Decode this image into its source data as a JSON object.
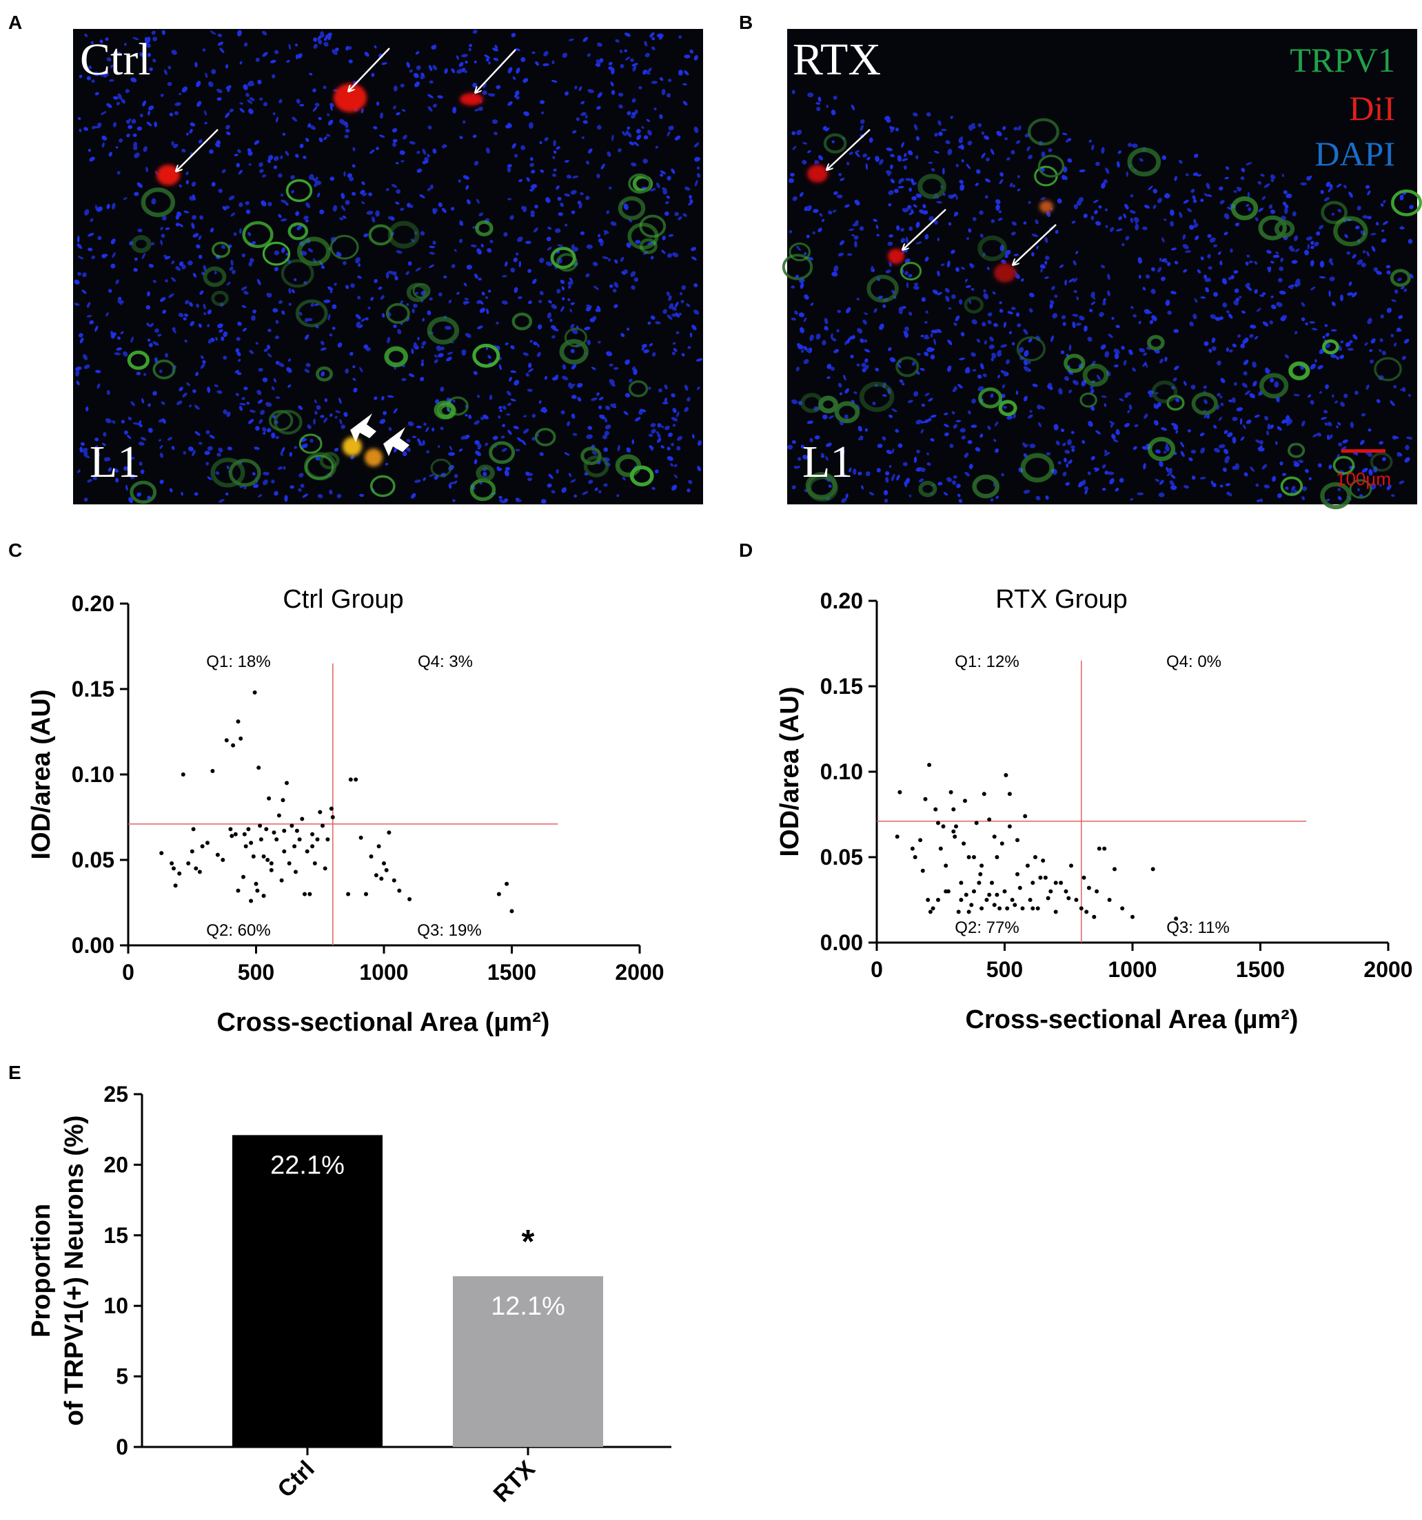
{
  "panels": {
    "A": {
      "letter": "A",
      "condition": "Ctrl",
      "level": "L1",
      "colors": {
        "background": "#05060c",
        "nuclei": "#1e30e6",
        "trpv1": "#3fa832",
        "dil": "#e0150f",
        "colocalized": "#e8b316",
        "arrow": "#ffffff"
      }
    },
    "B": {
      "letter": "B",
      "condition": "RTX",
      "level": "L1",
      "legend": [
        {
          "label": "TRPV1",
          "color": "#20a24a"
        },
        {
          "label": "DiI",
          "color": "#e0201a"
        },
        {
          "label": "DAPI",
          "color": "#1a6ec8"
        }
      ],
      "scalebar_label": "100µm",
      "scalebar_color": "#e01010"
    },
    "C": {
      "letter": "C"
    },
    "D": {
      "letter": "D"
    },
    "E": {
      "letter": "E"
    }
  },
  "chart_data": [
    {
      "panel": "C",
      "type": "scatter",
      "title": "Ctrl Group",
      "xlabel": "Cross-sectional Area (µm²)",
      "ylabel": "IOD/area (AU)",
      "xlim": [
        0,
        2000
      ],
      "ylim": [
        0,
        0.2
      ],
      "xticks": [
        "0",
        "500",
        "1000",
        "1500",
        "2000"
      ],
      "yticks": [
        "0.00",
        "0.05",
        "0.10",
        "0.15",
        "0.20"
      ],
      "threshold_x": 800,
      "threshold_y": 0.071,
      "threshold_color": "#e06060",
      "quadrants": {
        "Q1": "Q1: 18%",
        "Q2": "Q2: 60%",
        "Q3": "Q3: 19%",
        "Q4": "Q4: 3%"
      },
      "points": [
        [
          130,
          0.054
        ],
        [
          170,
          0.048
        ],
        [
          178,
          0.045
        ],
        [
          185,
          0.035
        ],
        [
          200,
          0.042
        ],
        [
          215,
          0.1
        ],
        [
          235,
          0.048
        ],
        [
          250,
          0.055
        ],
        [
          255,
          0.068
        ],
        [
          265,
          0.045
        ],
        [
          280,
          0.043
        ],
        [
          290,
          0.058
        ],
        [
          310,
          0.06
        ],
        [
          330,
          0.102
        ],
        [
          350,
          0.053
        ],
        [
          370,
          0.05
        ],
        [
          385,
          0.12
        ],
        [
          400,
          0.068
        ],
        [
          405,
          0.064
        ],
        [
          410,
          0.117
        ],
        [
          420,
          0.065
        ],
        [
          430,
          0.131
        ],
        [
          440,
          0.121
        ],
        [
          450,
          0.04
        ],
        [
          455,
          0.065
        ],
        [
          460,
          0.058
        ],
        [
          470,
          0.068
        ],
        [
          480,
          0.06
        ],
        [
          490,
          0.052
        ],
        [
          495,
          0.148
        ],
        [
          500,
          0.036
        ],
        [
          505,
          0.032
        ],
        [
          510,
          0.104
        ],
        [
          515,
          0.07
        ],
        [
          520,
          0.062
        ],
        [
          530,
          0.052
        ],
        [
          540,
          0.068
        ],
        [
          545,
          0.05
        ],
        [
          550,
          0.086
        ],
        [
          560,
          0.048
        ],
        [
          570,
          0.066
        ],
        [
          580,
          0.062
        ],
        [
          590,
          0.076
        ],
        [
          600,
          0.038
        ],
        [
          605,
          0.085
        ],
        [
          610,
          0.055
        ],
        [
          620,
          0.095
        ],
        [
          630,
          0.048
        ],
        [
          640,
          0.07
        ],
        [
          650,
          0.058
        ],
        [
          655,
          0.043
        ],
        [
          660,
          0.067
        ],
        [
          670,
          0.062
        ],
        [
          680,
          0.074
        ],
        [
          690,
          0.03
        ],
        [
          700,
          0.055
        ],
        [
          710,
          0.03
        ],
        [
          720,
          0.065
        ],
        [
          730,
          0.048
        ],
        [
          740,
          0.062
        ],
        [
          750,
          0.078
        ],
        [
          760,
          0.07
        ],
        [
          770,
          0.045
        ],
        [
          780,
          0.062
        ],
        [
          795,
          0.08
        ],
        [
          800,
          0.075
        ],
        [
          860,
          0.03
        ],
        [
          870,
          0.097
        ],
        [
          890,
          0.097
        ],
        [
          910,
          0.063
        ],
        [
          930,
          0.03
        ],
        [
          950,
          0.052
        ],
        [
          970,
          0.041
        ],
        [
          980,
          0.058
        ],
        [
          990,
          0.039
        ],
        [
          1000,
          0.048
        ],
        [
          1010,
          0.044
        ],
        [
          1020,
          0.066
        ],
        [
          1040,
          0.038
        ],
        [
          1060,
          0.032
        ],
        [
          1100,
          0.027
        ],
        [
          1450,
          0.03
        ],
        [
          1480,
          0.036
        ],
        [
          1500,
          0.02
        ],
        [
          560,
          0.044
        ],
        [
          610,
          0.067
        ],
        [
          720,
          0.058
        ],
        [
          530,
          0.029
        ],
        [
          480,
          0.026
        ],
        [
          430,
          0.032
        ]
      ]
    },
    {
      "panel": "D",
      "type": "scatter",
      "title": "RTX Group",
      "xlabel": "Cross-sectional Area (µm²)",
      "ylabel": "IOD/area (AU)",
      "xlim": [
        0,
        2000
      ],
      "ylim": [
        0,
        0.2
      ],
      "xticks": [
        "0",
        "500",
        "1000",
        "1500",
        "2000"
      ],
      "yticks": [
        "0.00",
        "0.05",
        "0.10",
        "0.15",
        "0.20"
      ],
      "threshold_x": 800,
      "threshold_y": 0.071,
      "threshold_color": "#e06060",
      "quadrants": {
        "Q1": "Q1: 12%",
        "Q2": "Q2: 77%",
        "Q3": "Q3: 11%",
        "Q4": "Q4: 0%"
      },
      "points": [
        [
          80,
          0.062
        ],
        [
          90,
          0.088
        ],
        [
          140,
          0.055
        ],
        [
          150,
          0.05
        ],
        [
          170,
          0.06
        ],
        [
          180,
          0.042
        ],
        [
          190,
          0.084
        ],
        [
          200,
          0.025
        ],
        [
          205,
          0.104
        ],
        [
          210,
          0.018
        ],
        [
          220,
          0.02
        ],
        [
          230,
          0.078
        ],
        [
          240,
          0.07
        ],
        [
          250,
          0.055
        ],
        [
          260,
          0.068
        ],
        [
          270,
          0.045
        ],
        [
          280,
          0.03
        ],
        [
          290,
          0.088
        ],
        [
          300,
          0.065
        ],
        [
          305,
          0.062
        ],
        [
          310,
          0.068
        ],
        [
          320,
          0.018
        ],
        [
          330,
          0.025
        ],
        [
          340,
          0.058
        ],
        [
          345,
          0.083
        ],
        [
          350,
          0.028
        ],
        [
          360,
          0.05
        ],
        [
          370,
          0.022
        ],
        [
          380,
          0.03
        ],
        [
          390,
          0.07
        ],
        [
          400,
          0.035
        ],
        [
          405,
          0.04
        ],
        [
          410,
          0.02
        ],
        [
          420,
          0.087
        ],
        [
          430,
          0.025
        ],
        [
          440,
          0.072
        ],
        [
          450,
          0.035
        ],
        [
          460,
          0.022
        ],
        [
          470,
          0.05
        ],
        [
          480,
          0.02
        ],
        [
          490,
          0.058
        ],
        [
          500,
          0.03
        ],
        [
          505,
          0.098
        ],
        [
          510,
          0.02
        ],
        [
          520,
          0.087
        ],
        [
          530,
          0.025
        ],
        [
          540,
          0.022
        ],
        [
          550,
          0.06
        ],
        [
          560,
          0.032
        ],
        [
          570,
          0.02
        ],
        [
          580,
          0.074
        ],
        [
          590,
          0.045
        ],
        [
          600,
          0.025
        ],
        [
          610,
          0.035
        ],
        [
          620,
          0.05
        ],
        [
          630,
          0.02
        ],
        [
          640,
          0.038
        ],
        [
          650,
          0.048
        ],
        [
          670,
          0.026
        ],
        [
          680,
          0.03
        ],
        [
          700,
          0.018
        ],
        [
          720,
          0.035
        ],
        [
          740,
          0.03
        ],
        [
          760,
          0.045
        ],
        [
          780,
          0.025
        ],
        [
          800,
          0.02
        ],
        [
          810,
          0.038
        ],
        [
          830,
          0.032
        ],
        [
          850,
          0.015
        ],
        [
          870,
          0.055
        ],
        [
          890,
          0.055
        ],
        [
          910,
          0.025
        ],
        [
          930,
          0.043
        ],
        [
          960,
          0.02
        ],
        [
          1000,
          0.015
        ],
        [
          1080,
          0.043
        ],
        [
          1170,
          0.014
        ],
        [
          860,
          0.03
        ],
        [
          820,
          0.018
        ],
        [
          240,
          0.025
        ],
        [
          270,
          0.03
        ],
        [
          330,
          0.035
        ],
        [
          360,
          0.018
        ],
        [
          410,
          0.045
        ],
        [
          470,
          0.028
        ],
        [
          550,
          0.04
        ],
        [
          610,
          0.02
        ],
        [
          660,
          0.038
        ],
        [
          700,
          0.035
        ],
        [
          750,
          0.026
        ],
        [
          300,
          0.078
        ],
        [
          520,
          0.068
        ],
        [
          460,
          0.062
        ],
        [
          380,
          0.05
        ],
        [
          440,
          0.028
        ]
      ]
    },
    {
      "panel": "E",
      "type": "bar",
      "ylabel": "Proportion of TRPV1(+) Neurons (%)",
      "ylim": [
        0,
        25
      ],
      "yticks": [
        "0",
        "5",
        "10",
        "15",
        "20",
        "25"
      ],
      "categories": [
        "Ctrl",
        "RTX"
      ],
      "values": [
        22.1,
        12.1
      ],
      "value_labels": [
        "22.1%",
        "12.1%"
      ],
      "colors": [
        "#000000",
        "#a6a6a8"
      ],
      "significance": [
        "",
        "*"
      ]
    }
  ]
}
